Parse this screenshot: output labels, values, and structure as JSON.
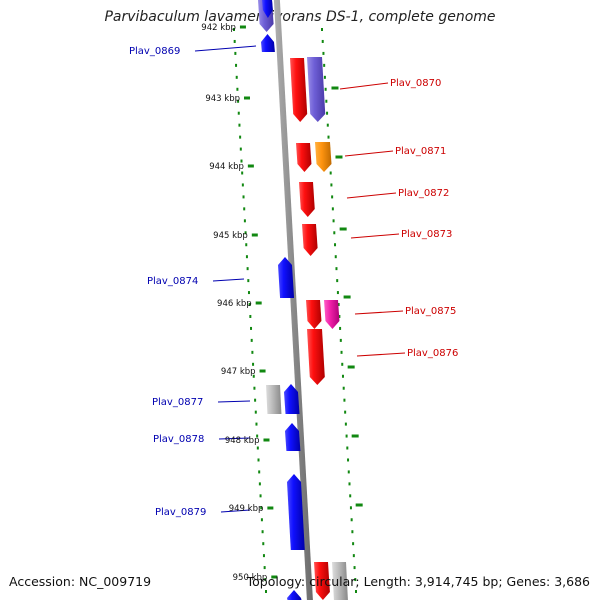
{
  "title": "Parvibaculum lavamentivorans DS-1, complete genome",
  "accession": "Accession: NC_009719",
  "topology": "Topology: circular; Length: 3,914,745 bp; Genes: 3,686",
  "colors": {
    "backbone": "#8c8c8c",
    "forward_label": "#0000b0",
    "reverse_label": "#cc0000",
    "tick": "#118811"
  },
  "kbp_ticks": [
    "942 kbp",
    "943 kbp",
    "944 kbp",
    "945 kbp",
    "946 kbp",
    "947 kbp",
    "948 kbp",
    "949 kbp",
    "950 kbp"
  ],
  "genes": [
    {
      "label": "Plav_0869",
      "strand": "forward"
    },
    {
      "label": "Plav_0870",
      "strand": "reverse"
    },
    {
      "label": "Plav_0871",
      "strand": "reverse"
    },
    {
      "label": "Plav_0872",
      "strand": "reverse"
    },
    {
      "label": "Plav_0873",
      "strand": "reverse"
    },
    {
      "label": "Plav_0874",
      "strand": "forward"
    },
    {
      "label": "Plav_0875",
      "strand": "reverse"
    },
    {
      "label": "Plav_0876",
      "strand": "reverse"
    },
    {
      "label": "Plav_0877",
      "strand": "forward"
    },
    {
      "label": "Plav_0878",
      "strand": "forward"
    },
    {
      "label": "Plav_0879",
      "strand": "forward"
    }
  ]
}
